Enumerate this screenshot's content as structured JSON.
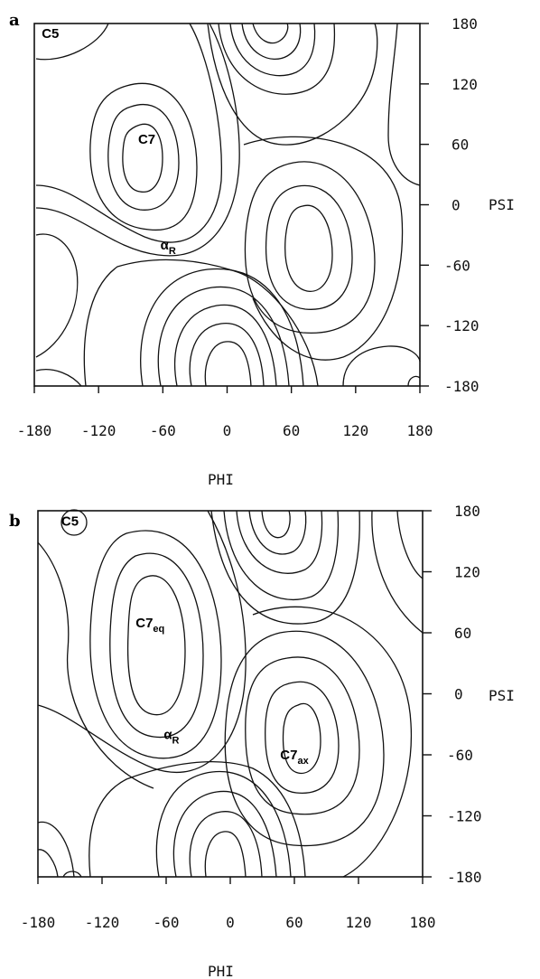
{
  "chart_data": [
    {
      "type": "contour",
      "panel_label": "a",
      "xlabel": "PHI",
      "ylabel": "PSI",
      "xlim": [
        -180,
        180
      ],
      "ylim": [
        -180,
        180
      ],
      "x_ticks": [
        "-180",
        "-120",
        "-60",
        "0",
        "60",
        "120",
        "180"
      ],
      "y_ticks": [
        "180",
        "120",
        "60",
        "0",
        "-60",
        "-120",
        "-180"
      ],
      "annotations": [
        {
          "text": "C5",
          "sub": "",
          "phi": -165,
          "psi": 170
        },
        {
          "text": "C7",
          "sub": "",
          "phi": -75,
          "psi": 65
        },
        {
          "text": "α",
          "sub": "R",
          "phi": -55,
          "psi": -40
        }
      ]
    },
    {
      "type": "contour",
      "panel_label": "b",
      "xlabel": "PHI",
      "ylabel": "PSI",
      "xlim": [
        -180,
        180
      ],
      "ylim": [
        -180,
        180
      ],
      "x_ticks": [
        "-180",
        "-120",
        "-60",
        "0",
        "60",
        "120",
        "180"
      ],
      "y_ticks": [
        "180",
        "120",
        "60",
        "0",
        "-60",
        "-120",
        "-180"
      ],
      "annotations": [
        {
          "text": "C5",
          "sub": "",
          "phi": -150,
          "psi": 170
        },
        {
          "text": "C7",
          "sub": "eq",
          "phi": -75,
          "psi": 70
        },
        {
          "text": "α",
          "sub": "R",
          "phi": -55,
          "psi": -40
        },
        {
          "text": "C7",
          "sub": "ax",
          "phi": 60,
          "psi": -60
        }
      ]
    }
  ]
}
